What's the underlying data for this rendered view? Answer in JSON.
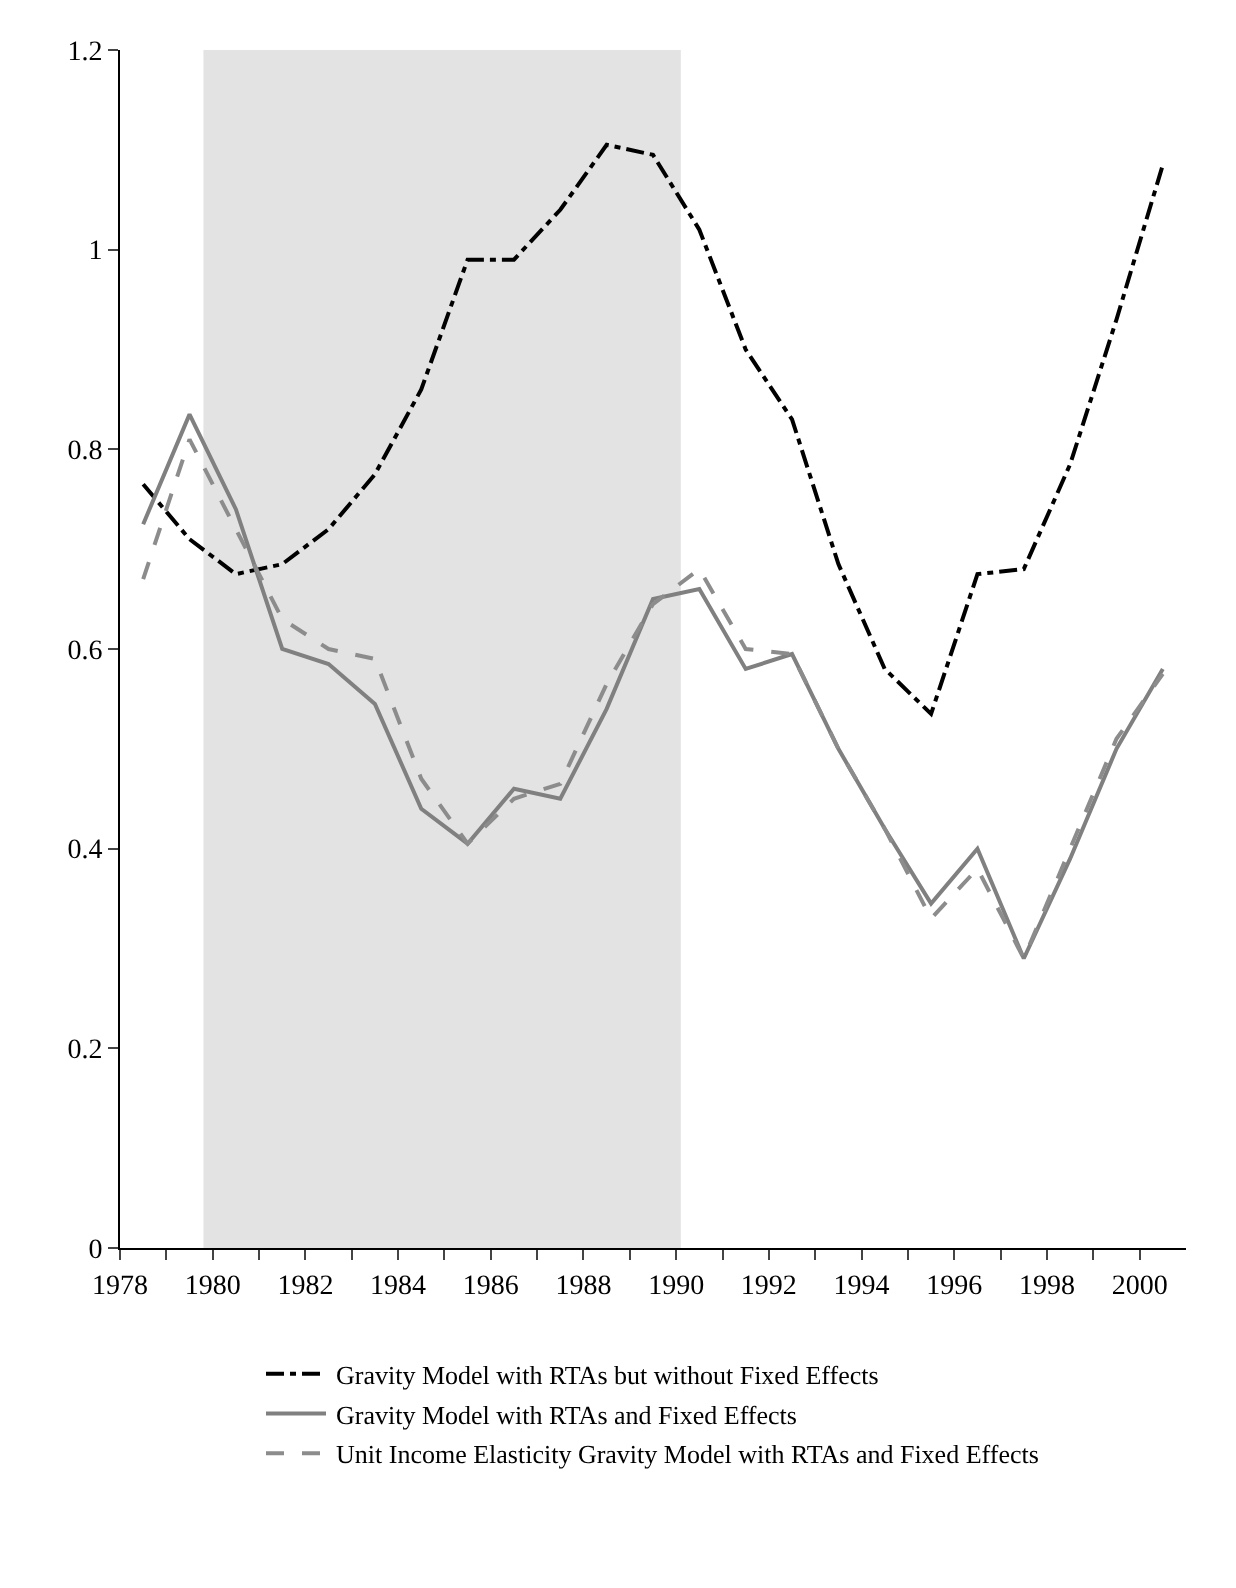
{
  "chart_data": {
    "type": "line",
    "x": [
      1978.5,
      1979.5,
      1980.5,
      1981.5,
      1982.5,
      1983.5,
      1984.5,
      1985.5,
      1986.5,
      1987.5,
      1988.5,
      1989.5,
      1990.5,
      1991.5,
      1992.5,
      1993.5,
      1994.5,
      1995.5,
      1996.5,
      1997.5,
      1998.5,
      1999.5,
      2000.5
    ],
    "series": [
      {
        "name": "Gravity Model with RTAs but without Fixed Effects",
        "color": "#000000",
        "line_style": "dashdot",
        "values": [
          0.765,
          0.71,
          0.675,
          0.685,
          0.72,
          0.775,
          0.86,
          0.99,
          0.99,
          1.04,
          1.105,
          1.095,
          1.02,
          0.9,
          0.83,
          0.685,
          0.58,
          0.535,
          0.675,
          0.68,
          0.785,
          0.93,
          1.085
        ]
      },
      {
        "name": "Gravity Model with RTAs and Fixed Effects",
        "color": "#808080",
        "line_style": "solid",
        "values": [
          0.725,
          0.835,
          0.74,
          0.6,
          0.585,
          0.545,
          0.44,
          0.405,
          0.46,
          0.45,
          0.54,
          0.65,
          0.66,
          0.58,
          0.595,
          0.5,
          0.42,
          0.345,
          0.4,
          0.29,
          0.39,
          0.5,
          0.58
        ]
      },
      {
        "name": "Unit Income Elasticity Gravity Model with RTAs and Fixed Effects",
        "color": "#8c8c8c",
        "line_style": "dashed",
        "values": [
          0.67,
          0.81,
          0.72,
          0.63,
          0.6,
          0.59,
          0.47,
          0.405,
          0.45,
          0.465,
          0.565,
          0.645,
          0.68,
          0.6,
          0.595,
          0.5,
          0.42,
          0.33,
          0.38,
          0.29,
          0.4,
          0.51,
          0.575
        ]
      }
    ],
    "xlim": [
      1978,
      2001
    ],
    "xticks": [
      1978,
      {
        "value": 1979,
        "label": null
      },
      1980,
      {
        "value": 1981,
        "label": null
      },
      1982,
      {
        "value": 1983,
        "label": null
      },
      1984,
      {
        "value": 1985,
        "label": null
      },
      1986,
      {
        "value": 1987,
        "label": null
      },
      1988,
      {
        "value": 1989,
        "label": null
      },
      1990,
      {
        "value": 1991,
        "label": null
      },
      1992,
      {
        "value": 1993,
        "label": null
      },
      1994,
      {
        "value": 1995,
        "label": null
      },
      1996,
      {
        "value": 1997,
        "label": null
      },
      1998,
      {
        "value": 1999,
        "label": null
      },
      2000
    ],
    "ylim": [
      0,
      1.2
    ],
    "yticks": [
      0,
      0.2,
      0.4,
      0.6,
      0.8,
      1,
      1.2
    ],
    "bands": [
      {
        "axis": "x",
        "from": 1979.8,
        "to": 1990.1,
        "color": "#e3e3e3"
      }
    ],
    "grid": false,
    "legend": "bottom",
    "marker": "none"
  }
}
